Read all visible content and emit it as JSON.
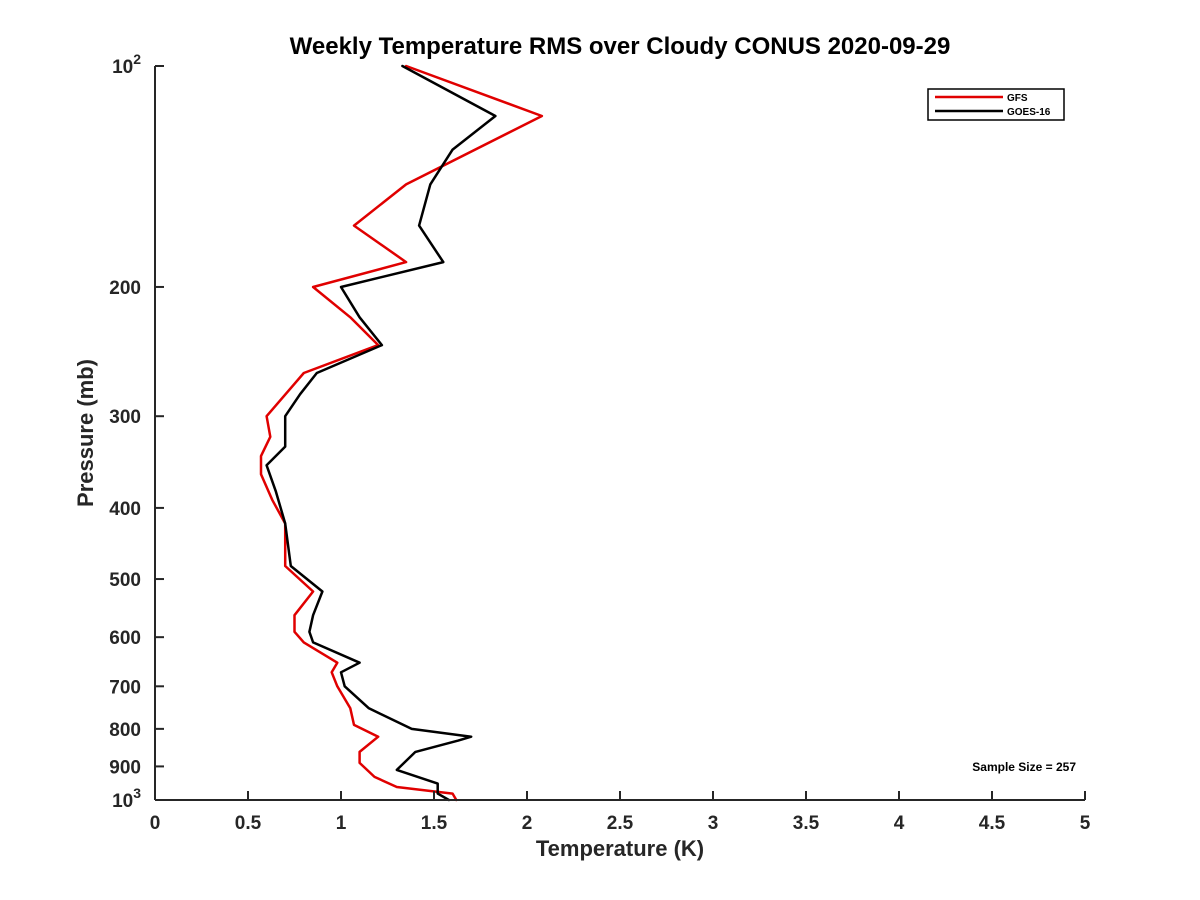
{
  "chart_data": {
    "type": "line",
    "title": "Weekly Temperature RMS over Cloudy CONUS 2020-09-29",
    "xlabel": "Temperature (K)",
    "ylabel": "Pressure (mb)",
    "xlim": [
      0,
      5
    ],
    "ylim": [
      100,
      1000
    ],
    "y_scale": "log",
    "y_reversed": true,
    "grid": false,
    "legend_position": "top-right",
    "x_ticks": [
      {
        "value": 0,
        "label": "0"
      },
      {
        "value": 0.5,
        "label": "0.5"
      },
      {
        "value": 1,
        "label": "1"
      },
      {
        "value": 1.5,
        "label": "1.5"
      },
      {
        "value": 2,
        "label": "2"
      },
      {
        "value": 2.5,
        "label": "2.5"
      },
      {
        "value": 3,
        "label": "3"
      },
      {
        "value": 3.5,
        "label": "3.5"
      },
      {
        "value": 4,
        "label": "4"
      },
      {
        "value": 4.5,
        "label": "4.5"
      },
      {
        "value": 5,
        "label": "5"
      }
    ],
    "y_ticks": [
      {
        "value": 100,
        "label": "10",
        "sup": "2"
      },
      {
        "value": 200,
        "label": "200"
      },
      {
        "value": 300,
        "label": "300"
      },
      {
        "value": 400,
        "label": "400"
      },
      {
        "value": 500,
        "label": "500"
      },
      {
        "value": 600,
        "label": "600"
      },
      {
        "value": 700,
        "label": "700"
      },
      {
        "value": 800,
        "label": "800"
      },
      {
        "value": 900,
        "label": "900"
      },
      {
        "value": 1000,
        "label": "10",
        "sup": "3"
      }
    ],
    "series": [
      {
        "name": "GFS",
        "color": "#e00000",
        "points": [
          {
            "x": 1.35,
            "y": 100
          },
          {
            "x": 2.08,
            "y": 117
          },
          {
            "x": 1.35,
            "y": 145
          },
          {
            "x": 1.07,
            "y": 165
          },
          {
            "x": 1.35,
            "y": 185
          },
          {
            "x": 0.85,
            "y": 200
          },
          {
            "x": 1.05,
            "y": 220
          },
          {
            "x": 1.2,
            "y": 240
          },
          {
            "x": 0.8,
            "y": 262
          },
          {
            "x": 0.6,
            "y": 300
          },
          {
            "x": 0.62,
            "y": 320
          },
          {
            "x": 0.57,
            "y": 340
          },
          {
            "x": 0.57,
            "y": 360
          },
          {
            "x": 0.63,
            "y": 390
          },
          {
            "x": 0.7,
            "y": 420
          },
          {
            "x": 0.7,
            "y": 480
          },
          {
            "x": 0.85,
            "y": 520
          },
          {
            "x": 0.75,
            "y": 560
          },
          {
            "x": 0.75,
            "y": 590
          },
          {
            "x": 0.8,
            "y": 610
          },
          {
            "x": 0.98,
            "y": 650
          },
          {
            "x": 0.95,
            "y": 670
          },
          {
            "x": 0.98,
            "y": 700
          },
          {
            "x": 1.05,
            "y": 750
          },
          {
            "x": 1.07,
            "y": 790
          },
          {
            "x": 1.2,
            "y": 820
          },
          {
            "x": 1.1,
            "y": 860
          },
          {
            "x": 1.1,
            "y": 890
          },
          {
            "x": 1.18,
            "y": 930
          },
          {
            "x": 1.3,
            "y": 960
          },
          {
            "x": 1.6,
            "y": 980
          },
          {
            "x": 1.62,
            "y": 1000
          }
        ]
      },
      {
        "name": "GOES-16",
        "color": "#000000",
        "points": [
          {
            "x": 1.33,
            "y": 100
          },
          {
            "x": 1.83,
            "y": 117
          },
          {
            "x": 1.6,
            "y": 130
          },
          {
            "x": 1.48,
            "y": 145
          },
          {
            "x": 1.42,
            "y": 165
          },
          {
            "x": 1.55,
            "y": 185
          },
          {
            "x": 1.0,
            "y": 200
          },
          {
            "x": 1.1,
            "y": 220
          },
          {
            "x": 1.22,
            "y": 240
          },
          {
            "x": 0.87,
            "y": 262
          },
          {
            "x": 0.78,
            "y": 280
          },
          {
            "x": 0.7,
            "y": 300
          },
          {
            "x": 0.7,
            "y": 330
          },
          {
            "x": 0.6,
            "y": 350
          },
          {
            "x": 0.65,
            "y": 380
          },
          {
            "x": 0.7,
            "y": 420
          },
          {
            "x": 0.73,
            "y": 480
          },
          {
            "x": 0.9,
            "y": 520
          },
          {
            "x": 0.85,
            "y": 560
          },
          {
            "x": 0.83,
            "y": 590
          },
          {
            "x": 0.85,
            "y": 610
          },
          {
            "x": 1.1,
            "y": 650
          },
          {
            "x": 1.0,
            "y": 670
          },
          {
            "x": 1.02,
            "y": 700
          },
          {
            "x": 1.15,
            "y": 750
          },
          {
            "x": 1.38,
            "y": 800
          },
          {
            "x": 1.7,
            "y": 820
          },
          {
            "x": 1.63,
            "y": 830
          },
          {
            "x": 1.4,
            "y": 860
          },
          {
            "x": 1.3,
            "y": 910
          },
          {
            "x": 1.52,
            "y": 950
          },
          {
            "x": 1.52,
            "y": 980
          },
          {
            "x": 1.58,
            "y": 1000
          }
        ]
      }
    ],
    "annotations": [
      {
        "text": "Sample Size = 257",
        "position": "bottom-right"
      }
    ]
  }
}
